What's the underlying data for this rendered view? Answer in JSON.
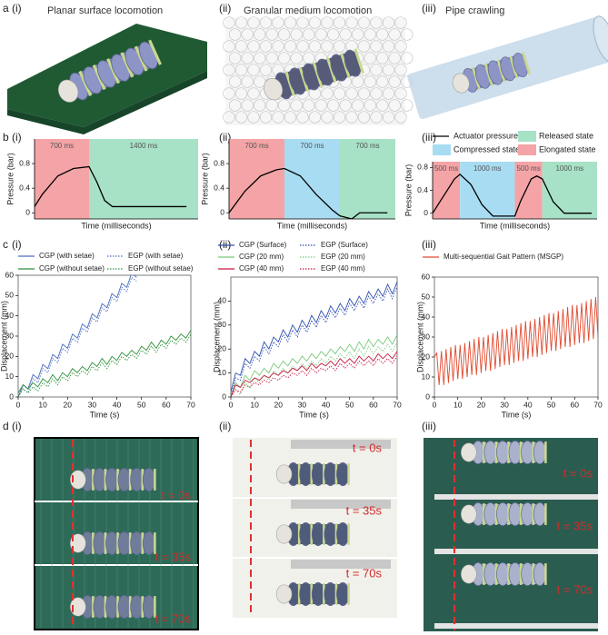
{
  "panel_labels": {
    "a": "a",
    "b": "b",
    "c": "c",
    "d": "d"
  },
  "a_panels": [
    {
      "label": "(i)",
      "title": "Planar surface locomotion"
    },
    {
      "label": "(ii)",
      "title": "Granular medium locomotion"
    },
    {
      "label": "(iii)",
      "title": "Pipe crawling"
    }
  ],
  "d_panels": [
    {
      "label": "(i)",
      "times": [
        "t = 0s",
        "t = 35s",
        "t = 70s"
      ]
    },
    {
      "label": "(ii)",
      "times": [
        "t = 0s",
        "t = 35s",
        "t = 70s"
      ]
    },
    {
      "label": "(iii)",
      "times": [
        "t = 0s",
        "t = 35s",
        "t = 70s"
      ]
    }
  ],
  "chart_data": [
    {
      "type": "line",
      "label": "(i)",
      "xlabel": "Time (milliseconds)",
      "ylabel": "Pressure (bar)",
      "xlim": [
        0,
        2100
      ],
      "ylim": [
        -0.1,
        1.2
      ],
      "yticks": [
        0,
        0.4,
        0.8
      ],
      "regions": [
        {
          "text": "700 ms",
          "start": 0,
          "end": 700,
          "color": "#f4a4a6"
        },
        {
          "text": "1400 ms",
          "start": 700,
          "end": 2100,
          "color": "#a7e2c6"
        }
      ],
      "series": [
        {
          "color": "#000000",
          "style": "solid",
          "x": [
            0,
            100,
            300,
            500,
            700,
            800,
            900,
            1000,
            1200,
            1600,
            1950
          ],
          "values": [
            0.1,
            0.3,
            0.6,
            0.72,
            0.75,
            0.5,
            0.2,
            0.1,
            0.1,
            0.1,
            0.1
          ]
        }
      ]
    },
    {
      "type": "line",
      "label": "(ii)",
      "xlabel": "Time (milliseconds)",
      "ylabel": "Pressure (bar)",
      "xlim": [
        0,
        2100
      ],
      "ylim": [
        -0.1,
        1.2
      ],
      "yticks": [
        0,
        0.4,
        0.8
      ],
      "regions": [
        {
          "text": "700 ms",
          "start": 0,
          "end": 700,
          "color": "#f4a4a6"
        },
        {
          "text": "700 ms",
          "start": 700,
          "end": 1400,
          "color": "#a8dcf2"
        },
        {
          "text": "700 ms",
          "start": 1400,
          "end": 2100,
          "color": "#a7e2c6"
        }
      ],
      "series": [
        {
          "color": "#000000",
          "style": "solid",
          "x": [
            0,
            200,
            400,
            600,
            700,
            900,
            1100,
            1300,
            1400,
            1550,
            1650,
            1800,
            2000
          ],
          "values": [
            0,
            0.35,
            0.6,
            0.7,
            0.72,
            0.6,
            0.3,
            0.05,
            -0.05,
            -0.1,
            0,
            0,
            0
          ]
        }
      ]
    },
    {
      "type": "line",
      "label": "(iii)",
      "xlabel": "Time (milliseconds)",
      "ylabel": "Pressure (bar)",
      "xlim": [
        0,
        3000
      ],
      "ylim": [
        -0.1,
        0.9
      ],
      "yticks": [
        0,
        0.4,
        0.8
      ],
      "regions": [
        {
          "text": "500 ms",
          "start": 0,
          "end": 500,
          "color": "#f4a4a6"
        },
        {
          "text": "1000 ms",
          "start": 500,
          "end": 1500,
          "color": "#a8dcf2"
        },
        {
          "text": "500 ms",
          "start": 1500,
          "end": 2000,
          "color": "#f4a4a6"
        },
        {
          "text": "1000 ms",
          "start": 2000,
          "end": 3000,
          "color": "#a7e2c6"
        }
      ],
      "series": [
        {
          "name": "Actuator pressure",
          "color": "#000000",
          "style": "solid",
          "x": [
            0,
            200,
            400,
            500,
            700,
            900,
            1100,
            1300,
            1500,
            1600,
            1800,
            1900,
            2000,
            2200,
            2400,
            2900
          ],
          "values": [
            0,
            0.3,
            0.6,
            0.68,
            0.5,
            0.15,
            -0.05,
            -0.05,
            -0.05,
            0.2,
            0.6,
            0.65,
            0.6,
            0.2,
            0,
            0
          ]
        }
      ],
      "legend": [
        {
          "name": "Compressed state",
          "color": "#a8dcf2"
        },
        {
          "name": "Released state",
          "color": "#a7e2c6"
        },
        {
          "name": "Elongated state",
          "color": "#f4a4a6"
        }
      ]
    },
    {
      "type": "line",
      "label": "(i)",
      "xlabel": "Time (s)",
      "ylabel": "Displacement (mm)",
      "xlim": [
        0,
        70
      ],
      "xticks": [
        0,
        10,
        20,
        30,
        40,
        50,
        60,
        70
      ],
      "ylim": [
        0,
        60
      ],
      "yticks": [
        0,
        10,
        20,
        30,
        40,
        50,
        60
      ],
      "x": [
        0,
        2,
        4,
        6,
        8,
        10,
        12,
        14,
        16,
        18,
        20,
        22,
        24,
        26,
        28,
        30,
        32,
        34,
        36,
        38,
        40,
        42,
        44,
        46,
        48,
        50,
        52,
        54,
        56,
        58,
        60,
        62,
        64,
        66,
        68,
        70
      ],
      "series": [
        {
          "name": "CGP (with setae)",
          "color": "#4a6cc0",
          "style": "solid",
          "values": [
            0,
            6,
            4,
            11,
            9,
            16,
            14,
            21,
            19,
            26,
            24,
            31,
            29,
            36,
            34,
            41,
            39,
            46,
            44,
            51,
            49,
            56,
            54,
            61,
            59,
            null,
            null,
            null,
            null,
            null,
            null,
            null,
            null,
            null,
            null,
            null
          ]
        },
        {
          "name": "EGP (with setae)",
          "color": "#4a6cc0",
          "style": "dotted",
          "values": [
            0,
            4,
            2,
            9,
            7,
            14,
            12,
            19,
            17,
            24,
            22,
            29,
            27,
            34,
            32,
            39,
            37,
            44,
            42,
            49,
            47,
            54,
            52,
            59,
            57,
            null,
            null,
            null,
            null,
            null,
            null,
            null,
            null,
            null,
            null,
            null
          ]
        },
        {
          "name": "CGP (without setae)",
          "color": "#2f8f3a",
          "style": "solid",
          "values": [
            2,
            6,
            4,
            7,
            5,
            9,
            7,
            11,
            8,
            12,
            10,
            14,
            12,
            15,
            13,
            17,
            15,
            19,
            16,
            20,
            18,
            22,
            20,
            23,
            21,
            25,
            23,
            27,
            24,
            28,
            26,
            30,
            28,
            31,
            29,
            33
          ]
        },
        {
          "name": "EGP (without setae)",
          "color": "#2f8f3a",
          "style": "dotted",
          "values": [
            0,
            4,
            2,
            5,
            3,
            7,
            5,
            9,
            6,
            10,
            8,
            12,
            10,
            13,
            11,
            15,
            13,
            17,
            14,
            18,
            16,
            20,
            18,
            21,
            19,
            23,
            21,
            25,
            22,
            26,
            24,
            28,
            26,
            29,
            27,
            31
          ]
        }
      ]
    },
    {
      "type": "line",
      "label": "(ii)",
      "xlabel": "Time (s)",
      "ylabel": "Displacement (mm)",
      "xlim": [
        0,
        70
      ],
      "xticks": [
        0,
        10,
        20,
        30,
        40,
        50,
        60,
        70
      ],
      "ylim": [
        0,
        50
      ],
      "yticks": [
        0,
        10,
        20,
        30,
        40
      ],
      "x": [
        0,
        2,
        4,
        6,
        8,
        10,
        12,
        14,
        16,
        18,
        20,
        22,
        24,
        26,
        28,
        30,
        32,
        34,
        36,
        38,
        40,
        42,
        44,
        46,
        48,
        50,
        52,
        54,
        56,
        58,
        60,
        62,
        64,
        66,
        68,
        70
      ],
      "series": [
        {
          "name": "CGP (Surface)",
          "color": "#2f4fb0",
          "style": "solid",
          "values": [
            2,
            10,
            9,
            16,
            14,
            19,
            17,
            23,
            20,
            25,
            23,
            28,
            25,
            30,
            27,
            32,
            29,
            34,
            31,
            36,
            33,
            38,
            35,
            39,
            36,
            41,
            38,
            42,
            39,
            44,
            41,
            45,
            42,
            47,
            43,
            48
          ]
        },
        {
          "name": "EGP (Surface)",
          "color": "#2f4fb0",
          "style": "dotted",
          "values": [
            0,
            8,
            7,
            14,
            12,
            17,
            15,
            21,
            18,
            23,
            21,
            26,
            23,
            28,
            25,
            30,
            27,
            32,
            29,
            34,
            31,
            36,
            33,
            37,
            34,
            39,
            36,
            40,
            37,
            42,
            39,
            43,
            40,
            45,
            41,
            46
          ]
        },
        {
          "name": "CGP (20 mm)",
          "color": "#7cc97c",
          "style": "solid",
          "values": [
            0,
            6,
            4,
            9,
            7,
            11,
            9,
            12,
            10,
            14,
            12,
            15,
            13,
            16,
            14,
            17,
            15,
            18,
            16,
            19,
            17,
            20,
            18,
            21,
            19,
            22,
            19,
            23,
            20,
            24,
            21,
            24,
            22,
            25,
            22,
            26
          ]
        },
        {
          "name": "EGP (20 mm)",
          "color": "#7cc97c",
          "style": "dotted",
          "values": [
            0,
            3,
            1,
            6,
            4,
            8,
            6,
            9,
            7,
            11,
            9,
            12,
            10,
            13,
            11,
            14,
            12,
            15,
            13,
            16,
            14,
            17,
            15,
            18,
            16,
            19,
            16,
            20,
            17,
            21,
            18,
            21,
            19,
            22,
            19,
            23
          ]
        },
        {
          "name": "CGP (40 mm)",
          "color": "#c8173f",
          "style": "solid",
          "values": [
            0,
            5,
            4,
            7,
            6,
            8,
            7,
            9,
            8,
            10,
            9,
            11,
            10,
            12,
            11,
            13,
            11,
            14,
            12,
            14,
            13,
            15,
            13,
            16,
            14,
            16,
            14,
            17,
            15,
            17,
            15,
            18,
            16,
            18,
            16,
            19
          ]
        },
        {
          "name": "EGP (40 mm)",
          "color": "#c8173f",
          "style": "dotted",
          "values": [
            0,
            3,
            2,
            5,
            4,
            6,
            5,
            7,
            6,
            8,
            7,
            9,
            8,
            10,
            9,
            11,
            9,
            12,
            10,
            12,
            11,
            13,
            11,
            14,
            12,
            14,
            12,
            15,
            13,
            15,
            13,
            16,
            14,
            16,
            14,
            17
          ]
        }
      ]
    },
    {
      "type": "line",
      "label": "(iii)",
      "xlabel": "Time (s)",
      "ylabel": "Displacement (mm)",
      "xlim": [
        0,
        70
      ],
      "xticks": [
        0,
        10,
        20,
        30,
        40,
        50,
        60,
        70
      ],
      "ylim": [
        0,
        60
      ],
      "yticks": [
        0,
        10,
        20,
        30,
        40,
        50,
        60
      ],
      "x": [
        0,
        1,
        2,
        3,
        4,
        5,
        6,
        7,
        8,
        9,
        10,
        11,
        12,
        13,
        14,
        15,
        16,
        17,
        18,
        19,
        20,
        21,
        22,
        23,
        24,
        25,
        26,
        27,
        28,
        29,
        30,
        31,
        32,
        33,
        34,
        35,
        36,
        37,
        38,
        39,
        40,
        41,
        42,
        43,
        44,
        45,
        46,
        47,
        48,
        49,
        50,
        51,
        52,
        53,
        54,
        55,
        56,
        57,
        58,
        59,
        60,
        61,
        62,
        63,
        64,
        65,
        66,
        67,
        68,
        69,
        70
      ],
      "series": [
        {
          "name": "Multi-sequential Gait Pattern (MSGP)",
          "color": "#e04a2f",
          "style": "solid",
          "values": [
            20,
            22,
            6,
            23,
            6,
            24,
            7,
            25,
            8,
            26,
            9,
            26,
            9,
            27,
            10,
            28,
            11,
            29,
            11,
            30,
            12,
            30,
            13,
            31,
            13,
            32,
            14,
            33,
            15,
            34,
            16,
            34,
            16,
            35,
            17,
            36,
            18,
            37,
            18,
            38,
            19,
            38,
            20,
            39,
            20,
            40,
            21,
            41,
            22,
            42,
            23,
            42,
            23,
            43,
            24,
            44,
            25,
            45,
            25,
            46,
            26,
            46,
            27,
            47,
            27,
            48,
            28,
            49,
            29,
            50,
            30
          ]
        }
      ]
    }
  ]
}
